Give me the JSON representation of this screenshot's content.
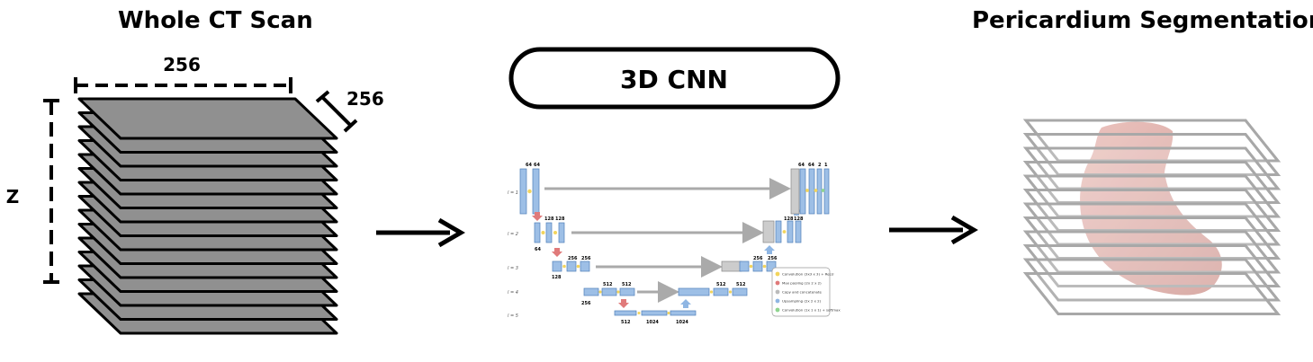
{
  "panels": {
    "input": {
      "title": "Whole CT Scan",
      "width_label": "256",
      "depth_label": "256",
      "height_label": "Z"
    },
    "model": {
      "title": "3D CNN",
      "unet": {
        "levels": [
          "l = 1",
          "l = 2",
          "l = 3",
          "l = 4",
          "l = 5"
        ],
        "encoder_labels": {
          "l1_top": [
            "64",
            "64"
          ],
          "l2_top": [
            "128",
            "128"
          ],
          "l2_side": "64",
          "l3_top": [
            "256",
            "256"
          ],
          "l3_side": "128",
          "l4_top": [
            "512",
            "512"
          ],
          "l4_side": "256",
          "l5_bottom": [
            "512",
            "1024",
            "1024"
          ]
        },
        "decoder_labels": {
          "l1_top": [
            "64",
            "64",
            "2",
            "1"
          ],
          "l2_bottom": [
            "128",
            "128"
          ],
          "l3_top": [
            "256",
            "256"
          ],
          "l4_top": [
            "512",
            "512"
          ]
        },
        "legend": [
          {
            "label": "Convolution (3x3 x 3) + ReLU",
            "color": "#f2d45c"
          },
          {
            "label": "Max pooling (2x 2 x 2)",
            "color": "#e07a7a"
          },
          {
            "label": "Copy and concatenate",
            "color": "#bbbbbb"
          },
          {
            "label": "Upsampling (2x 2 x 2)",
            "color": "#8fb6e3"
          },
          {
            "label": "Convolution (1x 1 x 1) + softmax",
            "color": "#8fd48f"
          }
        ],
        "block_color": "#9dbfe6",
        "block_edge": "#4f7fb8"
      }
    },
    "output": {
      "title": "Pericardium Segmentation",
      "organ_color": "#d99a94"
    }
  }
}
